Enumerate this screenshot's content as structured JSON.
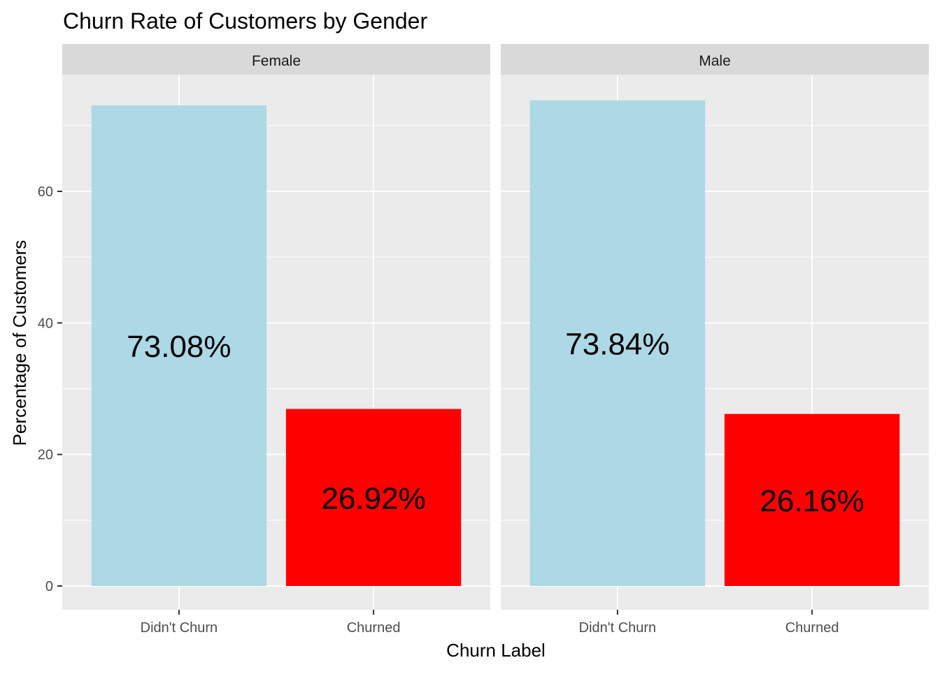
{
  "chart_data": {
    "type": "bar",
    "title": "Churn Rate of Customers by Gender",
    "xlabel": "Churn Label",
    "ylabel": "Percentage of Customers",
    "categories": [
      "Didn't Churn",
      "Churned"
    ],
    "ylim": [
      0,
      78
    ],
    "yticks": [
      0,
      20,
      40,
      60
    ],
    "ytick_labels": [
      "0",
      "20",
      "40",
      "60"
    ],
    "grid": true,
    "legend": "none",
    "colors": {
      "Didn't Churn": "#ADD8E6",
      "Churned": "#FF0000",
      "panel_background": "#EBEBEB",
      "strip_background": "#D9D9D9",
      "gridline": "#FFFFFF"
    },
    "facets": [
      {
        "name": "Female",
        "values": [
          73.08,
          26.92
        ],
        "labels": [
          "73.08%",
          "26.92%"
        ]
      },
      {
        "name": "Male",
        "values": [
          73.84,
          26.16
        ],
        "labels": [
          "73.84%",
          "26.16%"
        ]
      }
    ]
  }
}
